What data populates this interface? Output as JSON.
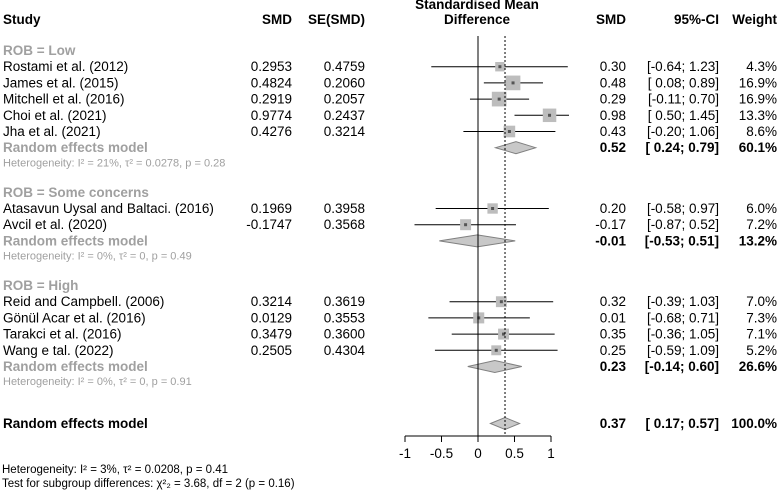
{
  "headers": {
    "study": "Study",
    "smd": "SMD",
    "se": "SE(SMD)",
    "plot_title_line1": "Standardised Mean",
    "plot_title_line2": "Difference",
    "smd_right": "SMD",
    "ci": "95%-CI",
    "weight": "Weight"
  },
  "chart_data": {
    "type": "forest",
    "title": "Standardised Mean Difference",
    "xlim": [
      -1,
      1
    ],
    "xticks": [
      "-1",
      "-0.5",
      "0",
      "0.5",
      "1"
    ],
    "overall_estimate_line": 0.37,
    "subgroups": [
      {
        "label": "ROB = Low",
        "studies": [
          {
            "study": "Rostami et al. (2012)",
            "smd": "0.2953",
            "se": "0.4759",
            "est": 0.3,
            "lo": -0.64,
            "hi": 1.23,
            "est_text": "0.30",
            "ci_text": "[-0.64; 1.23]",
            "weight_text": "4.3%",
            "w": 4.3
          },
          {
            "study": "James et al. (2015)",
            "smd": "0.4824",
            "se": "0.2060",
            "est": 0.48,
            "lo": 0.08,
            "hi": 0.89,
            "est_text": "0.48",
            "ci_text": "[ 0.08; 0.89]",
            "weight_text": "16.9%",
            "w": 16.9
          },
          {
            "study": "Mitchell et al. (2016)",
            "smd": "0.2919",
            "se": "0.2057",
            "est": 0.29,
            "lo": -0.11,
            "hi": 0.7,
            "est_text": "0.29",
            "ci_text": "[-0.11; 0.70]",
            "weight_text": "16.9%",
            "w": 16.9
          },
          {
            "study": "Choi et al. (2021)",
            "smd": "0.9774",
            "se": "0.2437",
            "est": 0.98,
            "lo": 0.5,
            "hi": 1.45,
            "est_text": "0.98",
            "ci_text": "[ 0.50; 1.45]",
            "weight_text": "13.3%",
            "w": 13.3
          },
          {
            "study": "Jha et al. (2021)",
            "smd": "0.4276",
            "se": "0.3214",
            "est": 0.43,
            "lo": -0.2,
            "hi": 1.06,
            "est_text": "0.43",
            "ci_text": "[-0.20; 1.06]",
            "weight_text": "8.6%",
            "w": 8.6
          }
        ],
        "model": {
          "label": "Random effects model",
          "est": 0.52,
          "lo": 0.24,
          "hi": 0.79,
          "est_text": "0.52",
          "ci_text": "[ 0.24; 0.79]",
          "weight_text": "60.1%"
        },
        "heterogeneity_text": "Heterogeneity: I² = 21%, τ² = 0.0278, p = 0.28"
      },
      {
        "label": "ROB = Some concerns",
        "studies": [
          {
            "study": "Atasavun Uysal and Baltaci. (2016)",
            "smd": "0.1969",
            "se": "0.3958",
            "est": 0.2,
            "lo": -0.58,
            "hi": 0.97,
            "est_text": "0.20",
            "ci_text": "[-0.58; 0.97]",
            "weight_text": "6.0%",
            "w": 6.0
          },
          {
            "study": "Avcil et al. (2020)",
            "smd": "-0.1747",
            "se": "0.3568",
            "est": -0.17,
            "lo": -0.87,
            "hi": 0.52,
            "est_text": "-0.17",
            "ci_text": "[-0.87; 0.52]",
            "weight_text": "7.2%",
            "w": 7.2
          }
        ],
        "model": {
          "label": "Random effects model",
          "est": -0.01,
          "lo": -0.53,
          "hi": 0.51,
          "est_text": "-0.01",
          "ci_text": "[-0.53; 0.51]",
          "weight_text": "13.2%"
        },
        "heterogeneity_text": "Heterogeneity: I² = 0%, τ² = 0, p = 0.49"
      },
      {
        "label": "ROB = High",
        "studies": [
          {
            "study": "Reid and Campbell. (2006)",
            "smd": "0.3214",
            "se": "0.3619",
            "est": 0.32,
            "lo": -0.39,
            "hi": 1.03,
            "est_text": "0.32",
            "ci_text": "[-0.39; 1.03]",
            "weight_text": "7.0%",
            "w": 7.0
          },
          {
            "study": "Gönül Acar et al. (2016)",
            "smd": "0.0129",
            "se": "0.3553",
            "est": 0.01,
            "lo": -0.68,
            "hi": 0.71,
            "est_text": "0.01",
            "ci_text": "[-0.68; 0.71]",
            "weight_text": "7.3%",
            "w": 7.3
          },
          {
            "study": "Tarakci et al. (2016)",
            "smd": "0.3479",
            "se": "0.3600",
            "est": 0.35,
            "lo": -0.36,
            "hi": 1.05,
            "est_text": "0.35",
            "ci_text": "[-0.36; 1.05]",
            "weight_text": "7.1%",
            "w": 7.1
          },
          {
            "study": "Wang e tal. (2022)",
            "smd": "0.2505",
            "se": "0.4304",
            "est": 0.25,
            "lo": -0.59,
            "hi": 1.09,
            "est_text": "0.25",
            "ci_text": "[-0.59; 1.09]",
            "weight_text": "5.2%",
            "w": 5.2
          }
        ],
        "model": {
          "label": "Random effects model",
          "est": 0.23,
          "lo": -0.14,
          "hi": 0.6,
          "est_text": "0.23",
          "ci_text": "[-0.14; 0.60]",
          "weight_text": "26.6%"
        },
        "heterogeneity_text": "Heterogeneity: I² = 0%, τ² = 0, p = 0.91"
      }
    ],
    "overall": {
      "label": "Random effects model",
      "est": 0.37,
      "lo": 0.17,
      "hi": 0.57,
      "est_text": "0.37",
      "ci_text": "[ 0.17; 0.57]",
      "weight_text": "100.0%"
    }
  },
  "footer": {
    "heterogeneity": "Heterogeneity: I² = 3%, τ² = 0.0208, p = 0.41",
    "subgroup_test": "Test for subgroup differences: χ²₂ = 3.68, df = 2 (p = 0.16)"
  }
}
